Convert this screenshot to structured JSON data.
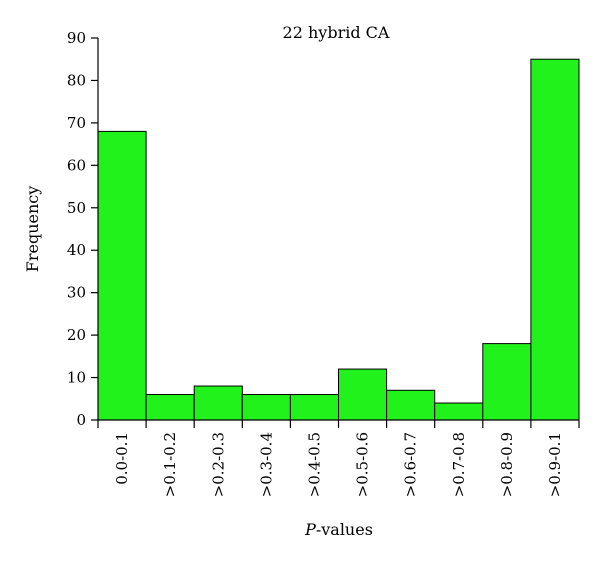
{
  "chart_data": {
    "type": "bar",
    "title": "22 hybrid CA",
    "xlabel": "P-values",
    "xlabel_italic_part": "P",
    "xlabel_rest": "-values",
    "ylabel": "Frequency",
    "categories": [
      "0.0-0.1",
      ">0.1-0.2",
      ">0.2-0.3",
      ">0.3-0.4",
      ">0.4-0.5",
      ">0.5-0.6",
      ">0.6-0.7",
      ">0.7-0.8",
      ">0.8-0.9",
      ">0.9-0.1"
    ],
    "values": [
      68,
      6,
      8,
      6,
      6,
      12,
      7,
      4,
      18,
      85
    ],
    "ylim": [
      0,
      90
    ],
    "yticks": [
      0,
      10,
      20,
      30,
      40,
      50,
      60,
      70,
      80,
      90
    ],
    "bar_color": "#22f21c",
    "grid": false,
    "legend": "none"
  }
}
